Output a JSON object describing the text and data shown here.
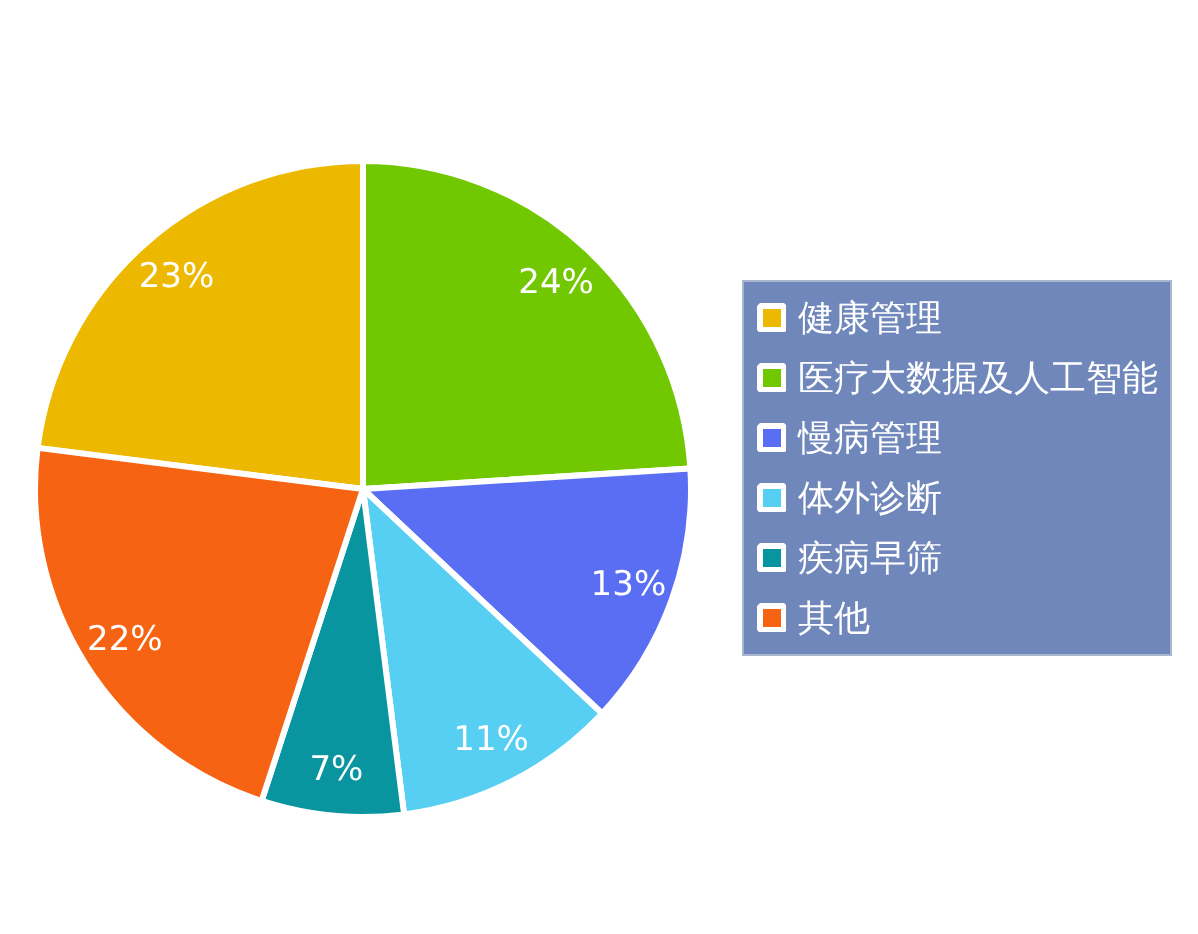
{
  "chart_data": {
    "type": "pie",
    "categories": [
      "健康管理",
      "医疗大数据及人工智能",
      "慢病管理",
      "体外诊断",
      "疾病早筛",
      "其他"
    ],
    "values": [
      23,
      24,
      13,
      11,
      7,
      22
    ],
    "colors": [
      "#edb800",
      "#72c800",
      "#5a6ef3",
      "#56cff2",
      "#08959f",
      "#f66313"
    ],
    "value_labels": [
      "23%",
      "24%",
      "13%",
      "11%",
      "7%",
      "22%"
    ],
    "legend": "right"
  }
}
